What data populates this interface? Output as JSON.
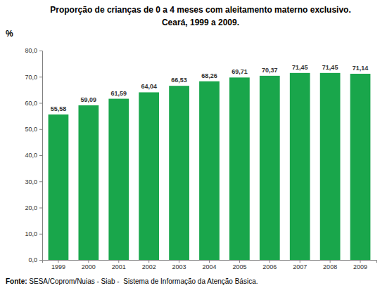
{
  "chart_data": {
    "type": "bar",
    "title": "Proporção de crianças de 0 a 4 meses com aleitamento materno exclusivo.",
    "subtitle": "Ceará, 1999 a 2009.",
    "y_label": "%",
    "categories": [
      "1999",
      "2000",
      "2001",
      "2002",
      "2003",
      "2004",
      "2005",
      "2006",
      "2007",
      "2008",
      "2009"
    ],
    "values": [
      55.58,
      59.09,
      61.59,
      64.04,
      66.53,
      68.26,
      69.71,
      70.37,
      71.45,
      71.45,
      71.14
    ],
    "value_labels": [
      "55,58",
      "59,09",
      "61,59",
      "64,04",
      "66,53",
      "68,26",
      "69,71",
      "70,37",
      "71,45",
      "71,45",
      "71,14"
    ],
    "color": "#19a64b",
    "ylim": [
      0,
      80
    ],
    "yticks": [
      {
        "value": 0,
        "label": "0,0"
      },
      {
        "value": 10,
        "label": "10,0"
      },
      {
        "value": 20,
        "label": "20,0"
      },
      {
        "value": 30,
        "label": "30,0"
      },
      {
        "value": 40,
        "label": "40,0"
      },
      {
        "value": 50,
        "label": "50,0"
      },
      {
        "value": 60,
        "label": "60,0"
      },
      {
        "value": 70,
        "label": "70,0"
      },
      {
        "value": 80,
        "label": "80,0"
      }
    ],
    "grid": false,
    "data_labels": true,
    "annotations": [
      "Fonte:",
      "SESA/Coprom/Nuias - Siab -  Sistema de Informação da Atenção Básica."
    ]
  }
}
